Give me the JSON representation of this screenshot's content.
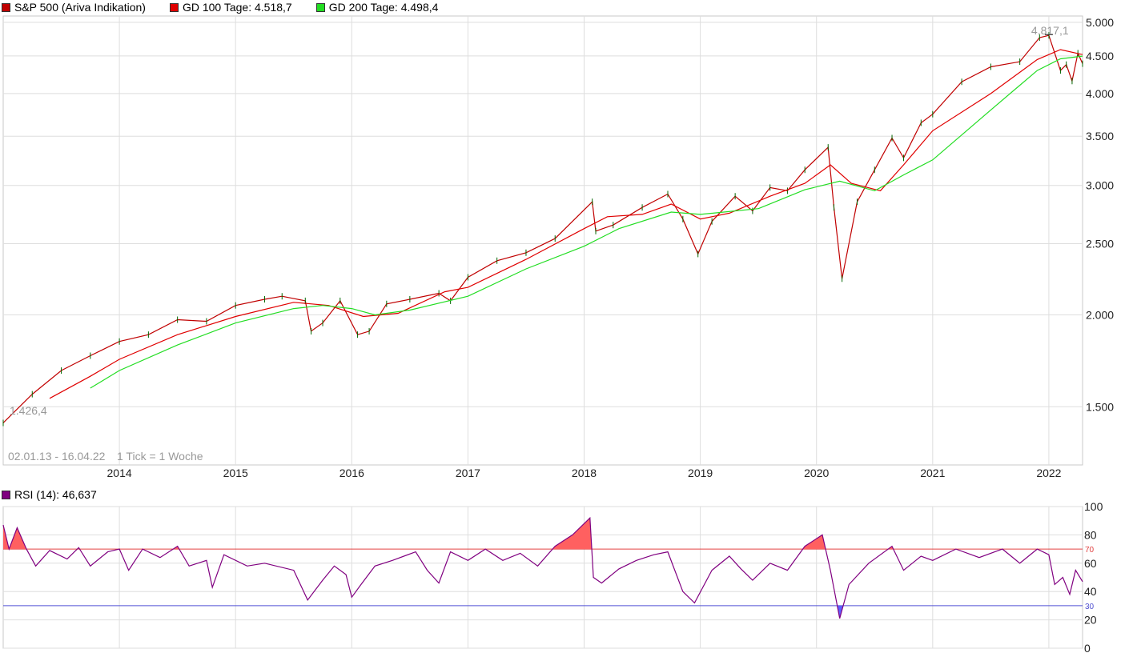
{
  "legend": {
    "main": {
      "label": "S&P 500 (Ariva Indikation)",
      "color": "#c00000"
    },
    "ma100": {
      "label": "GD 100 Tage: 4.518,7",
      "color": "#e00000"
    },
    "ma200": {
      "label": "GD 200 Tage: 4.498,4",
      "color": "#22dd22"
    }
  },
  "rsi_legend": {
    "label": "RSI (14): 46,637",
    "color": "#800080"
  },
  "annotations": {
    "max_label": "4.817,1",
    "min_label": "1.426,4",
    "range_label": "02.01.13 - 16.04.22",
    "tick_label": "1 Tick = 1 Woche"
  },
  "chart_data": [
    {
      "type": "line",
      "title": "S&P 500 (Ariva Indikation)",
      "scale": "log",
      "ylim": [
        1250,
        5100
      ],
      "y_ticks": [
        {
          "v": 1500,
          "label": "1.500"
        },
        {
          "v": 2000,
          "label": "2.000"
        },
        {
          "v": 2500,
          "label": "2.500"
        },
        {
          "v": 3000,
          "label": "3.000"
        },
        {
          "v": 3500,
          "label": "3.500"
        },
        {
          "v": 4000,
          "label": "4.000"
        },
        {
          "v": 4500,
          "label": "4.500"
        },
        {
          "v": 5000,
          "label": "5.000"
        }
      ],
      "x_range": [
        2013.0,
        2022.29
      ],
      "x_ticks": [
        {
          "v": 2014,
          "label": "2014"
        },
        {
          "v": 2015,
          "label": "2015"
        },
        {
          "v": 2016,
          "label": "2016"
        },
        {
          "v": 2017,
          "label": "2017"
        },
        {
          "v": 2018,
          "label": "2018"
        },
        {
          "v": 2019,
          "label": "2019"
        },
        {
          "v": 2020,
          "label": "2020"
        },
        {
          "v": 2021,
          "label": "2021"
        },
        {
          "v": 2022,
          "label": "2022"
        }
      ],
      "series": [
        {
          "name": "S&P 500 (Ariva Indikation)",
          "color": "#c00000",
          "points": [
            [
              2013.0,
              1426
            ],
            [
              2013.25,
              1560
            ],
            [
              2013.5,
              1680
            ],
            [
              2013.75,
              1760
            ],
            [
              2014.0,
              1840
            ],
            [
              2014.25,
              1880
            ],
            [
              2014.5,
              1970
            ],
            [
              2014.75,
              1960
            ],
            [
              2015.0,
              2060
            ],
            [
              2015.25,
              2100
            ],
            [
              2015.4,
              2120
            ],
            [
              2015.6,
              2090
            ],
            [
              2015.65,
              1900
            ],
            [
              2015.75,
              1950
            ],
            [
              2015.9,
              2090
            ],
            [
              2016.05,
              1880
            ],
            [
              2016.15,
              1900
            ],
            [
              2016.3,
              2070
            ],
            [
              2016.5,
              2100
            ],
            [
              2016.75,
              2140
            ],
            [
              2016.85,
              2090
            ],
            [
              2017.0,
              2250
            ],
            [
              2017.25,
              2370
            ],
            [
              2017.5,
              2430
            ],
            [
              2017.75,
              2540
            ],
            [
              2018.07,
              2850
            ],
            [
              2018.1,
              2600
            ],
            [
              2018.25,
              2650
            ],
            [
              2018.5,
              2800
            ],
            [
              2018.72,
              2920
            ],
            [
              2018.85,
              2700
            ],
            [
              2018.98,
              2420
            ],
            [
              2019.1,
              2680
            ],
            [
              2019.3,
              2900
            ],
            [
              2019.45,
              2770
            ],
            [
              2019.6,
              2980
            ],
            [
              2019.75,
              2950
            ],
            [
              2019.9,
              3150
            ],
            [
              2020.1,
              3380
            ],
            [
              2020.15,
              2800
            ],
            [
              2020.22,
              2240
            ],
            [
              2020.35,
              2850
            ],
            [
              2020.5,
              3150
            ],
            [
              2020.65,
              3480
            ],
            [
              2020.75,
              3270
            ],
            [
              2020.9,
              3650
            ],
            [
              2021.0,
              3750
            ],
            [
              2021.25,
              4150
            ],
            [
              2021.5,
              4350
            ],
            [
              2021.75,
              4420
            ],
            [
              2021.92,
              4766
            ],
            [
              2022.0,
              4800
            ],
            [
              2022.1,
              4300
            ],
            [
              2022.15,
              4380
            ],
            [
              2022.2,
              4160
            ],
            [
              2022.25,
              4540
            ],
            [
              2022.29,
              4392
            ]
          ]
        },
        {
          "name": "GD 100 Tage",
          "color": "#e00000",
          "points": [
            [
              2013.4,
              1540
            ],
            [
              2013.75,
              1650
            ],
            [
              2014.0,
              1740
            ],
            [
              2014.5,
              1880
            ],
            [
              2015.0,
              1990
            ],
            [
              2015.5,
              2080
            ],
            [
              2015.8,
              2060
            ],
            [
              2016.1,
              1990
            ],
            [
              2016.4,
              2010
            ],
            [
              2016.8,
              2150
            ],
            [
              2017.0,
              2180
            ],
            [
              2017.5,
              2380
            ],
            [
              2018.0,
              2620
            ],
            [
              2018.2,
              2720
            ],
            [
              2018.5,
              2740
            ],
            [
              2018.75,
              2830
            ],
            [
              2019.0,
              2700
            ],
            [
              2019.25,
              2750
            ],
            [
              2019.6,
              2900
            ],
            [
              2019.9,
              3020
            ],
            [
              2020.12,
              3200
            ],
            [
              2020.3,
              3020
            ],
            [
              2020.55,
              2950
            ],
            [
              2020.75,
              3200
            ],
            [
              2021.0,
              3560
            ],
            [
              2021.5,
              4000
            ],
            [
              2021.9,
              4450
            ],
            [
              2022.1,
              4590
            ],
            [
              2022.29,
              4520
            ]
          ]
        },
        {
          "name": "GD 200 Tage",
          "color": "#22dd22",
          "points": [
            [
              2013.75,
              1590
            ],
            [
              2014.0,
              1680
            ],
            [
              2014.5,
              1820
            ],
            [
              2015.0,
              1950
            ],
            [
              2015.5,
              2040
            ],
            [
              2015.75,
              2060
            ],
            [
              2016.0,
              2040
            ],
            [
              2016.2,
              2000
            ],
            [
              2016.5,
              2030
            ],
            [
              2017.0,
              2120
            ],
            [
              2017.5,
              2310
            ],
            [
              2018.0,
              2480
            ],
            [
              2018.3,
              2620
            ],
            [
              2018.75,
              2760
            ],
            [
              2019.0,
              2740
            ],
            [
              2019.5,
              2790
            ],
            [
              2019.9,
              2960
            ],
            [
              2020.2,
              3040
            ],
            [
              2020.5,
              2950
            ],
            [
              2020.75,
              3100
            ],
            [
              2021.0,
              3250
            ],
            [
              2021.5,
              3800
            ],
            [
              2021.9,
              4300
            ],
            [
              2022.1,
              4460
            ],
            [
              2022.29,
              4498
            ]
          ]
        }
      ]
    },
    {
      "type": "line",
      "title": "RSI (14): 46,637",
      "ylim": [
        0,
        100
      ],
      "y_ticks": [
        0,
        20,
        40,
        60,
        80,
        100
      ],
      "overbought": 70,
      "oversold": 30,
      "series": [
        {
          "name": "RSI (14)",
          "color": "#800080",
          "points": [
            [
              2013.0,
              87
            ],
            [
              2013.05,
              70
            ],
            [
              2013.12,
              85
            ],
            [
              2013.2,
              70
            ],
            [
              2013.28,
              58
            ],
            [
              2013.4,
              69
            ],
            [
              2013.55,
              63
            ],
            [
              2013.65,
              71
            ],
            [
              2013.75,
              58
            ],
            [
              2013.9,
              68
            ],
            [
              2014.0,
              70
            ],
            [
              2014.08,
              55
            ],
            [
              2014.2,
              70
            ],
            [
              2014.35,
              64
            ],
            [
              2014.5,
              72
            ],
            [
              2014.6,
              58
            ],
            [
              2014.75,
              62
            ],
            [
              2014.8,
              43
            ],
            [
              2014.9,
              66
            ],
            [
              2015.1,
              58
            ],
            [
              2015.25,
              60
            ],
            [
              2015.5,
              55
            ],
            [
              2015.62,
              34
            ],
            [
              2015.75,
              48
            ],
            [
              2015.85,
              58
            ],
            [
              2015.95,
              52
            ],
            [
              2016.0,
              36
            ],
            [
              2016.08,
              45
            ],
            [
              2016.2,
              58
            ],
            [
              2016.35,
              62
            ],
            [
              2016.55,
              68
            ],
            [
              2016.65,
              55
            ],
            [
              2016.75,
              46
            ],
            [
              2016.85,
              68
            ],
            [
              2017.0,
              62
            ],
            [
              2017.15,
              70
            ],
            [
              2017.3,
              62
            ],
            [
              2017.45,
              67
            ],
            [
              2017.6,
              58
            ],
            [
              2017.75,
              72
            ],
            [
              2017.9,
              80
            ],
            [
              2018.05,
              92
            ],
            [
              2018.08,
              50
            ],
            [
              2018.15,
              46
            ],
            [
              2018.3,
              56
            ],
            [
              2018.45,
              62
            ],
            [
              2018.6,
              66
            ],
            [
              2018.72,
              68
            ],
            [
              2018.85,
              40
            ],
            [
              2018.95,
              32
            ],
            [
              2019.1,
              55
            ],
            [
              2019.25,
              65
            ],
            [
              2019.35,
              56
            ],
            [
              2019.45,
              48
            ],
            [
              2019.6,
              60
            ],
            [
              2019.75,
              55
            ],
            [
              2019.9,
              72
            ],
            [
              2020.05,
              80
            ],
            [
              2020.12,
              55
            ],
            [
              2020.2,
              21
            ],
            [
              2020.28,
              45
            ],
            [
              2020.45,
              60
            ],
            [
              2020.65,
              72
            ],
            [
              2020.75,
              55
            ],
            [
              2020.9,
              65
            ],
            [
              2021.0,
              62
            ],
            [
              2021.2,
              70
            ],
            [
              2021.4,
              64
            ],
            [
              2021.6,
              70
            ],
            [
              2021.75,
              60
            ],
            [
              2021.9,
              70
            ],
            [
              2022.0,
              66
            ],
            [
              2022.05,
              45
            ],
            [
              2022.12,
              50
            ],
            [
              2022.18,
              38
            ],
            [
              2022.23,
              55
            ],
            [
              2022.29,
              47
            ]
          ]
        }
      ]
    }
  ]
}
